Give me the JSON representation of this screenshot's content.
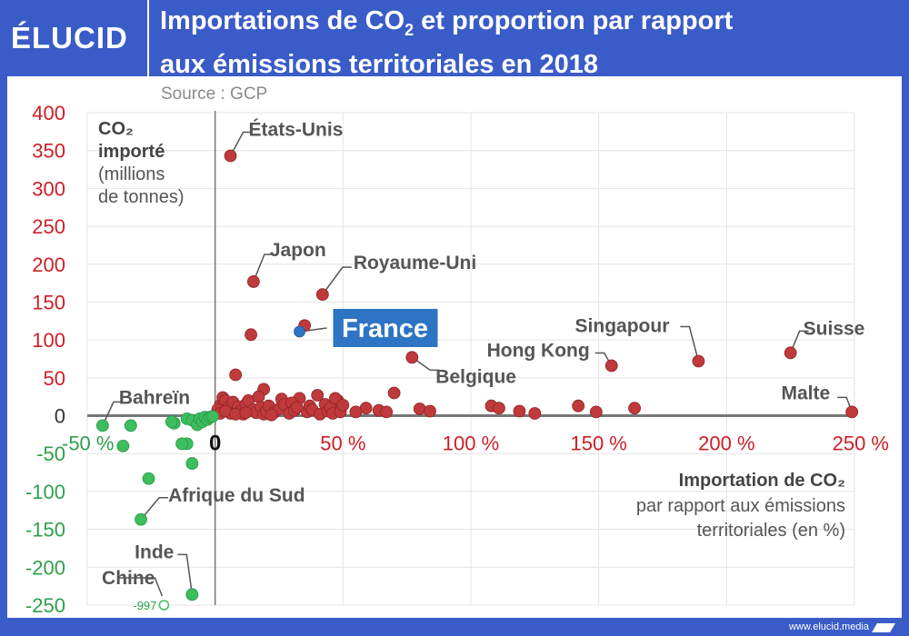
{
  "header": {
    "logo": "ÉLUCID",
    "title_line1_part1": "Importations de CO",
    "title_line1_sub": "2",
    "title_line1_part2": " et proportion par rapport",
    "title_line2": "aux émissions territoriales en 2018",
    "source": "Source : GCP"
  },
  "footer": {
    "url": "www.elucid.media"
  },
  "colors": {
    "positive": "#c0393b",
    "negative": "#3dbe5e",
    "france": "#2e74c4",
    "axis_pos_text": "#cc1f26",
    "axis_neg_text": "#2fa04c",
    "label_text": "#555555",
    "brand": "#3a5cc8"
  },
  "chart_data": {
    "type": "scatter",
    "title": "Importations de CO2 et proportion par rapport aux émissions territoriales en 2018",
    "source": "Source : GCP",
    "ylabel_bold": [
      "CO₂",
      "importé"
    ],
    "ylabel_rest": [
      "(millions",
      "de tonnes)"
    ],
    "xlabel_bold": "Importation de CO₂",
    "xlabel_rest": [
      "par rapport aux émissions",
      "territoriales (en %)"
    ],
    "xlim": [
      -50,
      250
    ],
    "ylim": [
      -250,
      400
    ],
    "grid": true,
    "x_ticks": [
      {
        "value": -50,
        "label": "-50 %"
      },
      {
        "value": 0,
        "label": "0"
      },
      {
        "value": 50,
        "label": "50 %"
      },
      {
        "value": 100,
        "label": "100 %"
      },
      {
        "value": 150,
        "label": "150 %"
      },
      {
        "value": 200,
        "label": "200 %"
      },
      {
        "value": 250,
        "label": "250 %"
      }
    ],
    "y_ticks": [
      {
        "value": 400,
        "label": "400"
      },
      {
        "value": 350,
        "label": "350"
      },
      {
        "value": 300,
        "label": "300"
      },
      {
        "value": 250,
        "label": "250"
      },
      {
        "value": 200,
        "label": "200"
      },
      {
        "value": 150,
        "label": "150"
      },
      {
        "value": 100,
        "label": "100"
      },
      {
        "value": 50,
        "label": "50"
      },
      {
        "value": 0,
        "label": "0"
      },
      {
        "value": -50,
        "label": "-50"
      },
      {
        "value": -100,
        "label": "-100"
      },
      {
        "value": -150,
        "label": "-150"
      },
      {
        "value": -200,
        "label": "-200"
      },
      {
        "value": -250,
        "label": "-250"
      }
    ],
    "labeled_points": [
      {
        "name": "États-Unis",
        "x": 6,
        "y": 343
      },
      {
        "name": "Japon",
        "x": 15,
        "y": 177
      },
      {
        "name": "Royaume-Uni",
        "x": 42,
        "y": 160
      },
      {
        "name": "Belgique",
        "x": 77,
        "y": 77
      },
      {
        "name": "Singapour",
        "x": 189,
        "y": 72
      },
      {
        "name": "Hong Kong",
        "x": 155,
        "y": 66
      },
      {
        "name": "Suisse",
        "x": 225,
        "y": 83
      },
      {
        "name": "Malte",
        "x": 249,
        "y": 5
      },
      {
        "name": "Bahreïn",
        "x": -44,
        "y": -13
      },
      {
        "name": "Afrique du Sud",
        "x": -29,
        "y": -137
      },
      {
        "name": "Inde",
        "x": -9,
        "y": -236
      },
      {
        "name": "Chine",
        "x": -20,
        "y": -997,
        "value_label": "-997"
      }
    ],
    "highlight": {
      "name": "France",
      "x": 33,
      "y": 111
    },
    "points": [
      [
        35,
        119
      ],
      [
        14,
        107
      ],
      [
        8,
        54
      ],
      [
        19,
        35
      ],
      [
        33,
        23
      ],
      [
        40,
        27
      ],
      [
        48,
        20
      ],
      [
        70,
        30
      ],
      [
        59,
        10
      ],
      [
        64,
        7
      ],
      [
        80,
        9
      ],
      [
        84,
        6
      ],
      [
        108,
        13
      ],
      [
        111,
        10
      ],
      [
        119,
        6
      ],
      [
        125,
        3
      ],
      [
        142,
        13
      ],
      [
        149,
        5
      ],
      [
        164,
        10
      ],
      [
        2,
        14
      ],
      [
        3,
        24
      ],
      [
        4,
        20
      ],
      [
        5,
        10
      ],
      [
        6,
        3
      ],
      [
        7,
        18
      ],
      [
        9,
        12
      ],
      [
        10,
        6
      ],
      [
        11,
        2
      ],
      [
        12,
        15
      ],
      [
        13,
        20
      ],
      [
        15,
        8
      ],
      [
        16,
        4
      ],
      [
        17,
        25
      ],
      [
        18,
        11
      ],
      [
        19,
        2
      ],
      [
        20,
        6
      ],
      [
        21,
        13
      ],
      [
        23,
        4
      ],
      [
        25,
        9
      ],
      [
        26,
        22
      ],
      [
        27,
        15
      ],
      [
        29,
        3
      ],
      [
        30,
        17
      ],
      [
        31,
        7
      ],
      [
        32,
        11
      ],
      [
        36,
        5
      ],
      [
        37,
        13
      ],
      [
        38,
        8
      ],
      [
        41,
        2
      ],
      [
        43,
        15
      ],
      [
        44,
        6
      ],
      [
        45,
        10
      ],
      [
        46,
        3
      ],
      [
        47,
        23
      ],
      [
        49,
        5
      ],
      [
        50,
        14
      ],
      [
        55,
        5
      ],
      [
        67,
        5
      ],
      [
        1,
        8
      ],
      [
        2,
        3
      ],
      [
        4,
        6
      ],
      [
        8,
        2
      ],
      [
        12,
        4
      ],
      [
        22,
        1
      ]
    ],
    "negative_points": [
      [
        -33,
        -13
      ],
      [
        -36,
        -40
      ],
      [
        -26,
        -83
      ],
      [
        -9,
        -63
      ],
      [
        -11,
        -37
      ],
      [
        -13,
        -37
      ],
      [
        -16,
        -10
      ],
      [
        -17,
        -8
      ],
      [
        -11,
        -4
      ],
      [
        -9,
        -6
      ],
      [
        -7,
        -12
      ],
      [
        -6,
        -4
      ],
      [
        -5,
        -8
      ],
      [
        -4,
        -2
      ],
      [
        -3,
        -5
      ],
      [
        -2,
        -2
      ],
      [
        -1,
        -1
      ]
    ]
  }
}
